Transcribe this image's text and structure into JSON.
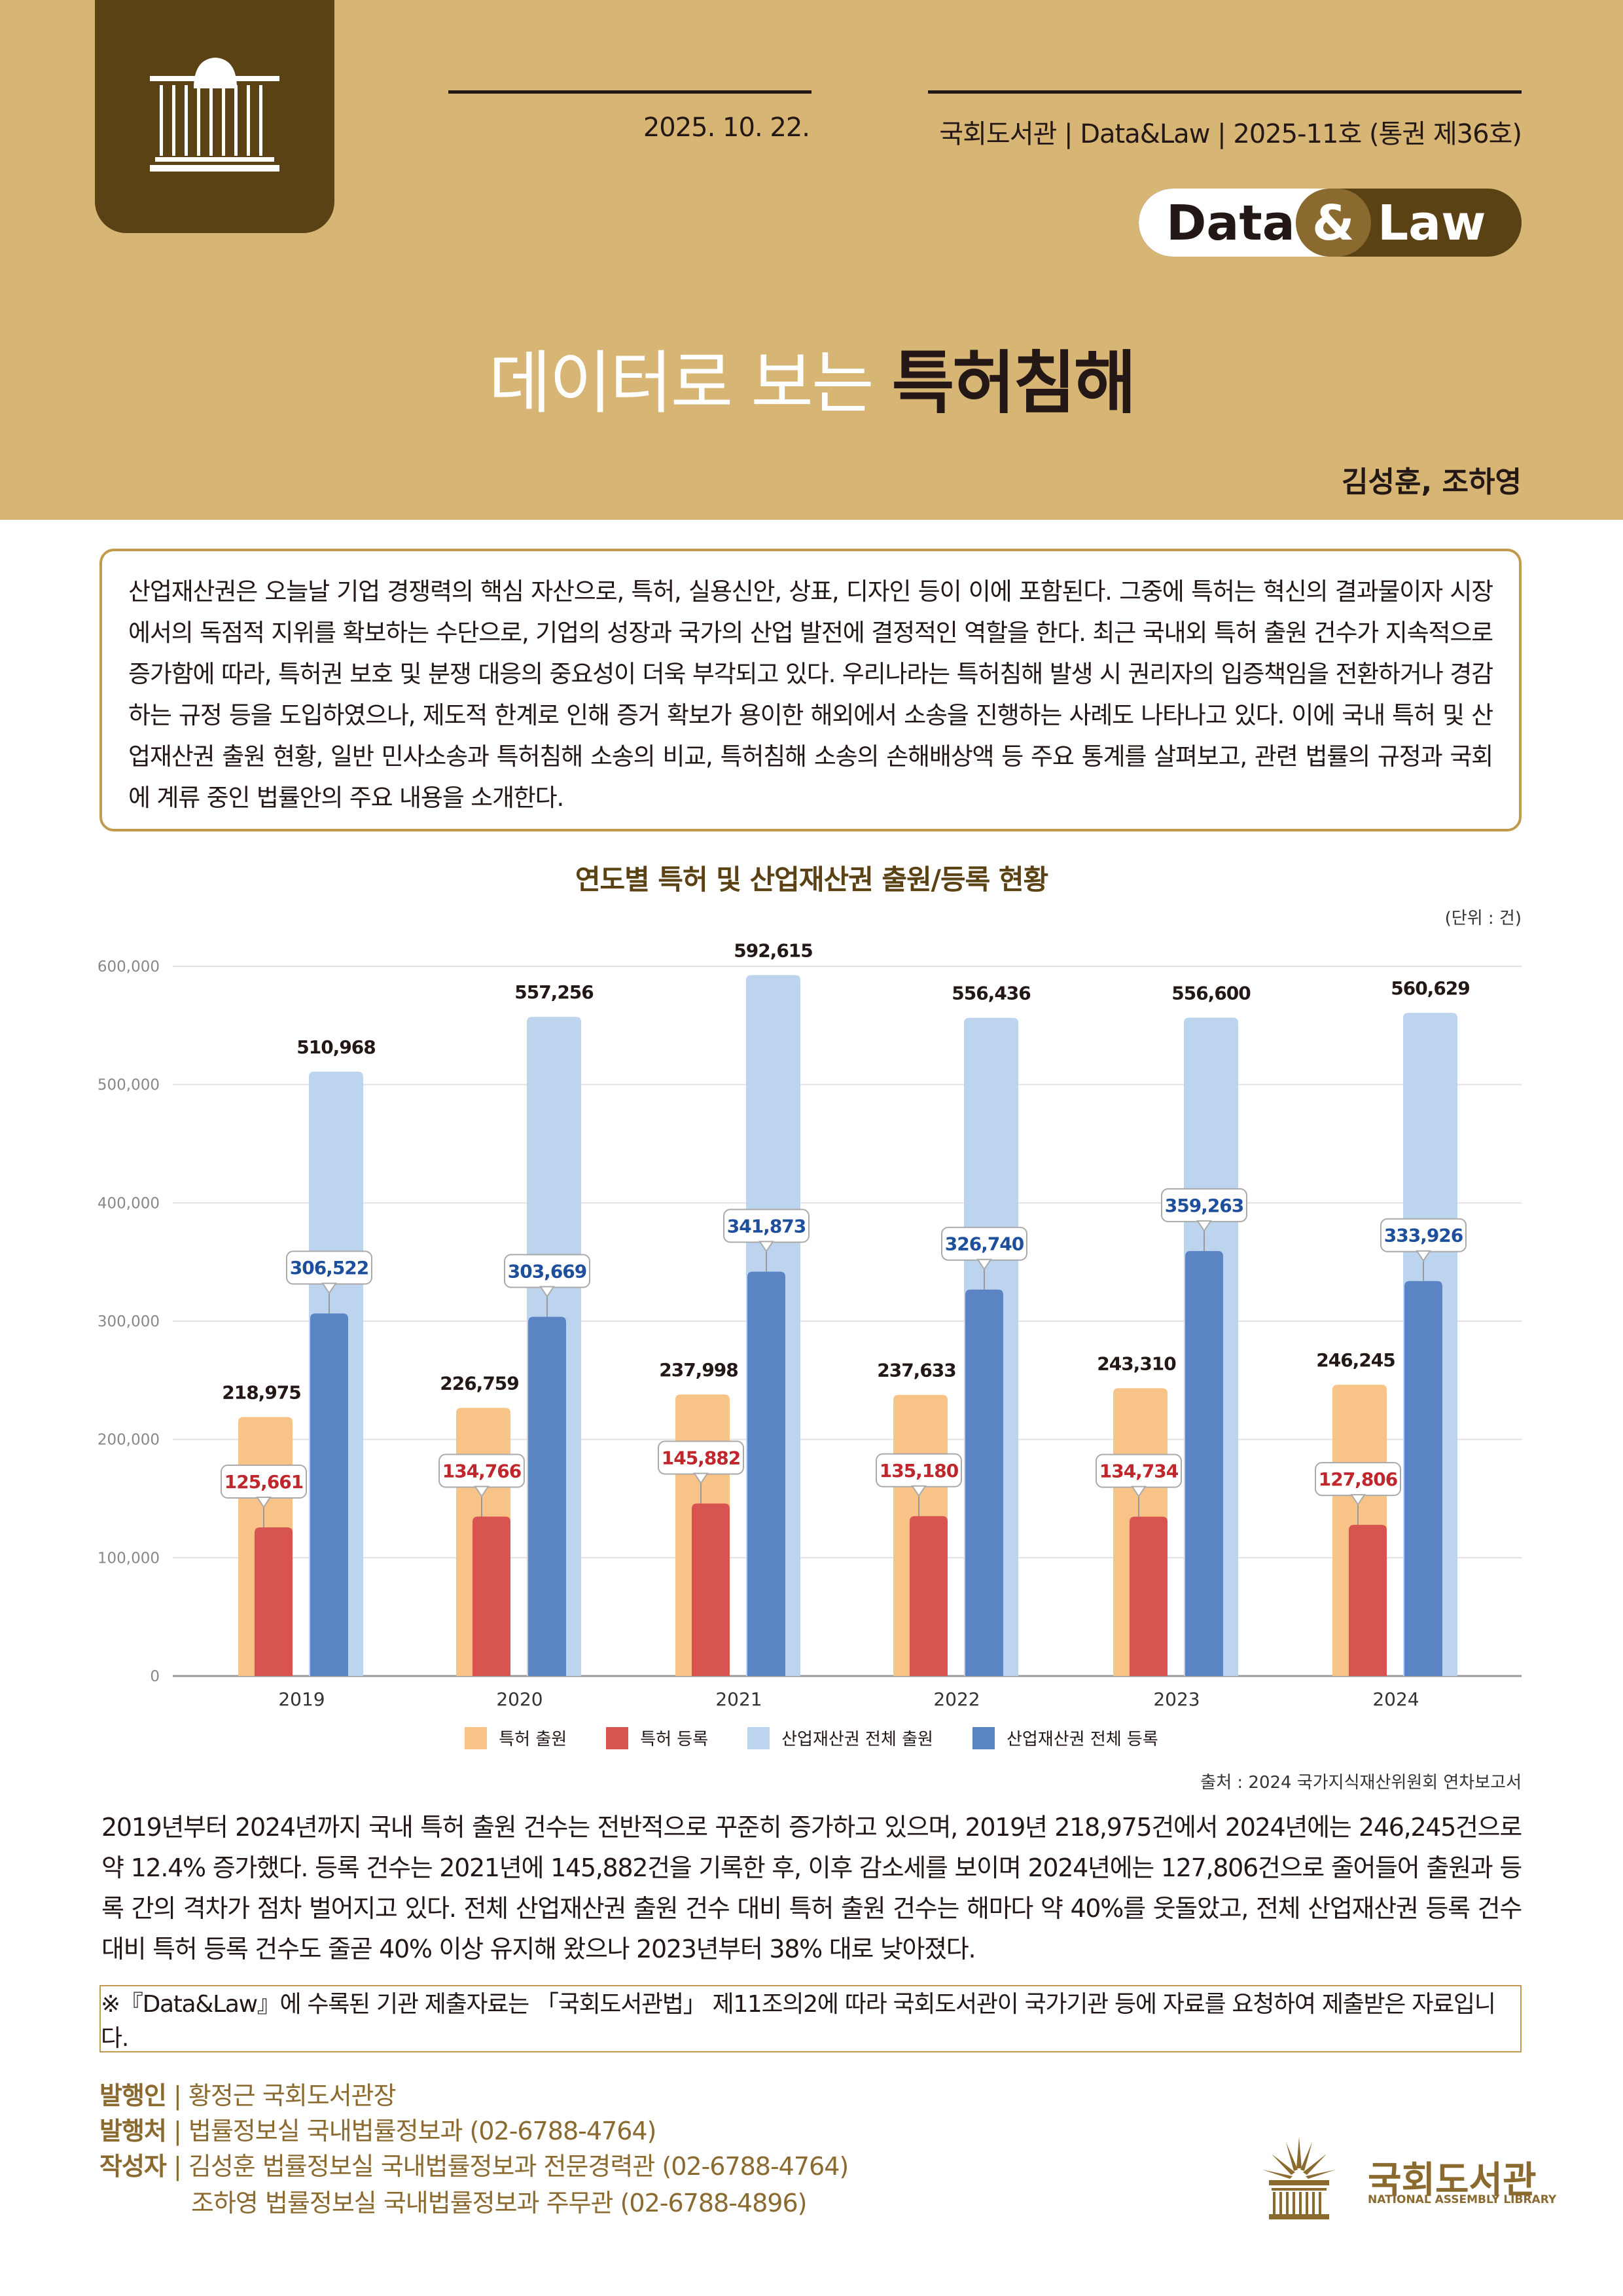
{
  "header": {
    "date": "2025. 10. 22.",
    "publication": "국회도서관 | Data&Law | 2025-11호 (통권 제36호)",
    "badge": {
      "data": "Data",
      "amp": "&",
      "law": "Law"
    },
    "title_light": "데이터로 보는",
    "title_bold": "특허침해",
    "authors": "김성훈, 조하영"
  },
  "intro": "산업재산권은 오늘날 기업 경쟁력의 핵심 자산으로, 특허, 실용신안, 상표, 디자인 등이 이에 포함된다. 그중에 특허는 혁신의 결과물이자 시장에서의 독점적 지위를 확보하는 수단으로, 기업의 성장과 국가의 산업 발전에 결정적인 역할을 한다. 최근 국내외 특허 출원 건수가 지속적으로 증가함에 따라, 특허권 보호 및 분쟁 대응의 중요성이 더욱 부각되고 있다. 우리나라는 특허침해 발생 시 권리자의 입증책임을 전환하거나 경감하는 규정 등을 도입하였으나, 제도적 한계로 인해 증거 확보가 용이한 해외에서 소송을 진행하는 사례도 나타나고 있다. 이에 국내 특허 및 산업재산권 출원 현황, 일반 민사소송과 특허침해 소송의 비교, 특허침해 소송의 손해배상액 등 주요 통계를 살펴보고, 관련 법률의 규정과 국회에 계류 중인 법률안의 주요 내용을 소개한다.",
  "chart_data": {
    "type": "bar",
    "title": "연도별 특허 및 산업재산권 출원/등록 현황",
    "unit": "(단위 : 건)",
    "categories": [
      "2019",
      "2020",
      "2021",
      "2022",
      "2023",
      "2024"
    ],
    "ylim": [
      0,
      600000
    ],
    "yticks": [
      "0",
      "100,000",
      "200,000",
      "300,000",
      "400,000",
      "500,000",
      "600,000"
    ],
    "grid": true,
    "legend_position": "bottom",
    "series": [
      {
        "name": "특허 출원",
        "color": "#f8c386",
        "values": [
          218975,
          226759,
          237998,
          237633,
          243310,
          246245
        ],
        "labels": [
          "218,975",
          "226,759",
          "237,998",
          "237,633",
          "243,310",
          "246,245"
        ]
      },
      {
        "name": "특허 등록",
        "color": "#d85450",
        "values": [
          125661,
          134766,
          145882,
          135180,
          134734,
          127806
        ],
        "labels": [
          "125,661",
          "134,766",
          "145,882",
          "135,180",
          "134,734",
          "127,806"
        ]
      },
      {
        "name": "산업재산권 전체 출원",
        "color": "#bcd4ee",
        "values": [
          510968,
          557256,
          592615,
          556436,
          556600,
          560629
        ],
        "labels": [
          "510,968",
          "557,256",
          "592,615",
          "556,436",
          "556,600",
          "560,629"
        ]
      },
      {
        "name": "산업재산권 전체 등록",
        "color": "#5a84c4",
        "values": [
          306522,
          303669,
          341873,
          326740,
          359263,
          333926
        ],
        "labels": [
          "306,522",
          "303,669",
          "341,873",
          "326,740",
          "359,263",
          "333,926"
        ]
      }
    ],
    "source": "출처 : 2024 국가지식재산위원회 연차보고서"
  },
  "paragraph": "2019년부터 2024년까지 국내 특허 출원 건수는 전반적으로 꾸준히 증가하고 있으며, 2019년 218,975건에서 2024년에는 246,245건으로 약 12.4% 증가했다. 등록 건수는 2021년에 145,882건을 기록한 후, 이후 감소세를 보이며 2024년에는 127,806건으로 줄어들어 출원과 등록 간의 격차가 점차 벌어지고 있다. 전체 산업재산권 출원 건수 대비 특허 출원 건수는 해마다 약 40%를 웃돌았고, 전체 산업재산권 등록 건수 대비 특허 등록 건수도 줄곧 40% 이상 유지해 왔으나 2023년부터 38% 대로 낮아졌다.",
  "note": "※『Data&Law』에 수록된 기관 제출자료는 「국회도서관법」 제11조의2에 따라 국회도서관이 국가기관 등에 자료를 요청하여 제출받은 자료입니다.",
  "footer": {
    "publisher_label": "발행인",
    "publisher": "황정근 국회도서관장",
    "issuer_label": "발행처",
    "issuer": "법률정보실 국내법률정보과 (02-6788-4764)",
    "writer_label": "작성자",
    "writer1": "김성훈 법률정보실 국내법률정보과 전문경력관 (02-6788-4764)",
    "writer2": "조하영 법률정보실 국내법률정보과 주무관 (02-6788-4896)",
    "logo_text": "국회도서관",
    "logo_sub": "NATIONAL ASSEMBLY LIBRARY"
  },
  "colors": {
    "header_bg": "#d7b574",
    "brand_brown": "#5b4214",
    "accent_gold": "#c29a4c"
  }
}
